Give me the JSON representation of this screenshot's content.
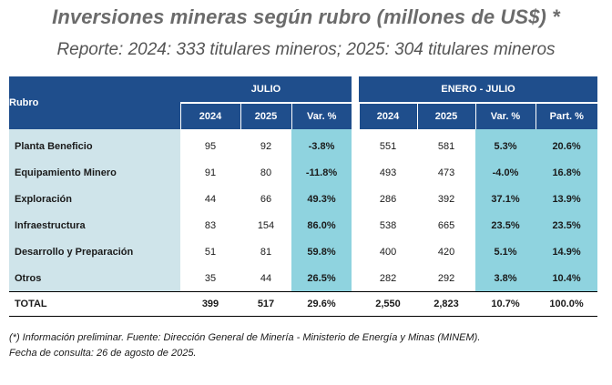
{
  "title": "Inversiones mineras según rubro (millones de US$) *",
  "subtitle": "Reporte: 2024: 333 titulares mineros; 2025: 304 titulares mineros",
  "table": {
    "rubro_header": "Rubro",
    "group_julio": "JULIO",
    "group_enero_julio": "ENERO - JULIO",
    "col_headers": [
      "2024",
      "2025",
      "Var. %",
      "2024",
      "2025",
      "Var. %",
      "Part. %"
    ],
    "rows": [
      {
        "name": "Planta Beneficio",
        "j2024": "95",
        "j2025": "92",
        "jvar": "-3.8%",
        "e2024": "551",
        "e2025": "581",
        "evar": "5.3%",
        "part": "20.6%"
      },
      {
        "name": "Equipamiento Minero",
        "j2024": "91",
        "j2025": "80",
        "jvar": "-11.8%",
        "e2024": "493",
        "e2025": "473",
        "evar": "-4.0%",
        "part": "16.8%"
      },
      {
        "name": "Exploración",
        "j2024": "44",
        "j2025": "66",
        "jvar": "49.3%",
        "e2024": "286",
        "e2025": "392",
        "evar": "37.1%",
        "part": "13.9%"
      },
      {
        "name": "Infraestructura",
        "j2024": "83",
        "j2025": "154",
        "jvar": "86.0%",
        "e2024": "538",
        "e2025": "665",
        "evar": "23.5%",
        "part": "23.5%"
      },
      {
        "name": "Desarrollo y Preparación",
        "j2024": "51",
        "j2025": "81",
        "jvar": "59.8%",
        "e2024": "400",
        "e2025": "420",
        "evar": "5.1%",
        "part": "14.9%"
      },
      {
        "name": "Otros",
        "j2024": "35",
        "j2025": "44",
        "jvar": "26.5%",
        "e2024": "282",
        "e2025": "292",
        "evar": "3.8%",
        "part": "10.4%"
      }
    ],
    "total": {
      "name": "TOTAL",
      "j2024": "399",
      "j2025": "517",
      "jvar": "29.6%",
      "e2024": "2,550",
      "e2025": "2,823",
      "evar": "10.7%",
      "part": "100.0%"
    }
  },
  "footnote": {
    "line1": "(*) Información preliminar. Fuente: Dirección General de Minería - Ministerio de Energía y Minas (MINEM).",
    "line2": "Fecha de consulta: 26 de agosto de 2025."
  },
  "colors": {
    "header": "#1f4e8c",
    "name_cell": "#cfe4ea",
    "highlight": "#8fd3df"
  }
}
